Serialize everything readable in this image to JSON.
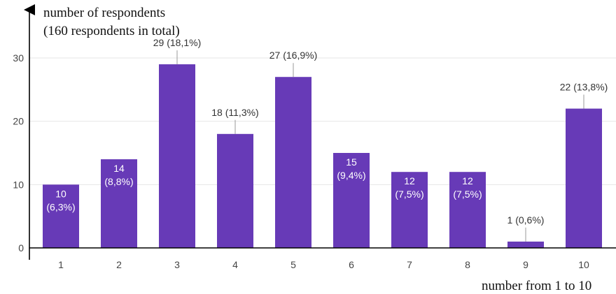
{
  "chart_data": {
    "type": "bar",
    "ylabel": [
      "number of respondents",
      "(160 respondents in total)"
    ],
    "xlabel": "number from 1 to 10",
    "categories": [
      "1",
      "2",
      "3",
      "4",
      "5",
      "6",
      "7",
      "8",
      "9",
      "10"
    ],
    "values": [
      10,
      14,
      29,
      18,
      27,
      15,
      12,
      12,
      1,
      22
    ],
    "data_labels": [
      [
        "10",
        "(6,3%)"
      ],
      [
        "14",
        "(8,8%)"
      ],
      [
        "29 (18,1%)"
      ],
      [
        "18 (11,3%)"
      ],
      [
        "27 (16,9%)"
      ],
      [
        "15",
        "(9,4%)"
      ],
      [
        "12",
        "(7,5%)"
      ],
      [
        "12",
        "(7,5%)"
      ],
      [
        "1 (0,6%)"
      ],
      [
        "22 (13,8%)"
      ]
    ],
    "yticks": [
      0,
      10,
      20,
      30
    ],
    "ylim": [
      0,
      30
    ],
    "bar_color": "#673ab7",
    "grid": true,
    "legend": "none"
  }
}
